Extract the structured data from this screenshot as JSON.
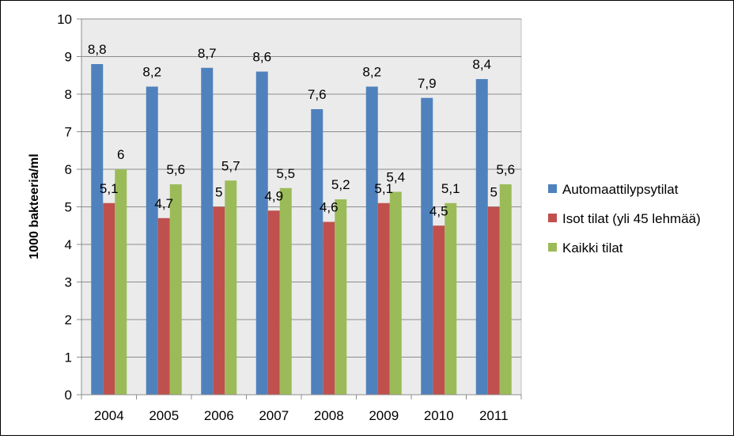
{
  "chart_data": {
    "type": "bar",
    "ylabel": "1000 bakteeria/ml",
    "ylim": [
      0,
      10
    ],
    "yticks": [
      0,
      1,
      2,
      3,
      4,
      5,
      6,
      7,
      8,
      9,
      10
    ],
    "grid": true,
    "legend_position": "right",
    "categories": [
      "2004",
      "2005",
      "2006",
      "2007",
      "2008",
      "2009",
      "2010",
      "2011"
    ],
    "series": [
      {
        "name": "Automaattilypsytilat",
        "color": "#4F81BD",
        "values": [
          8.8,
          8.2,
          8.7,
          8.6,
          7.6,
          8.2,
          7.9,
          8.4
        ],
        "labels": [
          "8,8",
          "8,2",
          "8,7",
          "8,6",
          "7,6",
          "8,2",
          "7,9",
          "8,4"
        ]
      },
      {
        "name": "Isot tilat (yli 45 lehmää)",
        "color": "#C0504D",
        "values": [
          5.1,
          4.7,
          5.0,
          4.9,
          4.6,
          5.1,
          4.5,
          5.0
        ],
        "labels": [
          "5,1",
          "4,7",
          "5",
          "4,9",
          "4,6",
          "5,1",
          "4,5",
          "5"
        ]
      },
      {
        "name": "Kaikki tilat",
        "color": "#9BBB59",
        "values": [
          6.0,
          5.6,
          5.7,
          5.5,
          5.2,
          5.4,
          5.1,
          5.6
        ],
        "labels": [
          "6",
          "5,6",
          "5,7",
          "5,5",
          "5,2",
          "5,4",
          "5,1",
          "5,6"
        ]
      }
    ]
  }
}
